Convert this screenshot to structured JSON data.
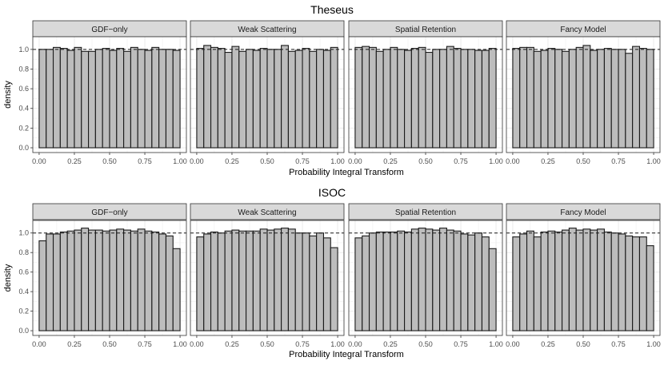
{
  "figure": {
    "panel_groups": [
      {
        "title": "Theseus",
        "xlabel": "Probability Integral Transform",
        "ylabel": "density"
      },
      {
        "title": "ISOC",
        "xlabel": "Probability Integral Transform",
        "ylabel": "density"
      }
    ],
    "facet_labels": [
      "GDF−only",
      "Weak Scattering",
      "Spatial Retention",
      "Fancy Model"
    ],
    "x_ticks": [
      "0.00",
      "0.25",
      "0.50",
      "0.75",
      "1.00"
    ],
    "y_ticks": [
      "0.0",
      "0.2",
      "0.4",
      "0.6",
      "0.8",
      "1.0"
    ]
  },
  "colors": {
    "bar_fill": "#bdbdbd",
    "bar_stroke": "#1a1a1a",
    "strip_fill": "#d9d9d9",
    "grid": "#ebebeb",
    "reference_line": "#1a1a1a"
  },
  "chart_data": [
    {
      "type": "bar",
      "title": "Theseus",
      "xlabel": "Probability Integral Transform",
      "ylabel": "density",
      "xlim": [
        0,
        1
      ],
      "ylim": [
        0,
        1.08
      ],
      "reference_line": 1.0,
      "bins": 20,
      "series": [
        {
          "name": "GDF−only",
          "values": [
            1.0,
            1.0,
            1.02,
            1.01,
            0.99,
            1.02,
            0.98,
            0.98,
            1.0,
            1.01,
            0.99,
            1.01,
            0.98,
            1.02,
            1.0,
            0.99,
            1.02,
            1.0,
            1.0,
            0.99
          ]
        },
        {
          "name": "Weak Scattering",
          "values": [
            1.01,
            1.04,
            1.02,
            1.01,
            0.97,
            1.03,
            0.98,
            1.0,
            0.99,
            1.01,
            1.0,
            1.0,
            1.04,
            0.98,
            0.99,
            1.01,
            0.98,
            1.0,
            0.99,
            1.02
          ]
        },
        {
          "name": "Spatial Retention",
          "values": [
            1.02,
            1.03,
            1.02,
            0.98,
            1.0,
            1.02,
            1.0,
            0.99,
            1.01,
            1.02,
            0.97,
            1.0,
            1.0,
            1.03,
            1.01,
            1.0,
            1.0,
            0.99,
            0.99,
            1.01
          ]
        },
        {
          "name": "Fancy Model",
          "values": [
            1.01,
            1.02,
            1.02,
            0.98,
            0.99,
            1.01,
            1.0,
            0.98,
            1.0,
            1.02,
            1.04,
            0.99,
            1.0,
            1.01,
            1.0,
            1.0,
            0.96,
            1.03,
            1.01,
            1.0
          ]
        }
      ]
    },
    {
      "type": "bar",
      "title": "ISOC",
      "xlabel": "Probability Integral Transform",
      "ylabel": "density",
      "xlim": [
        0,
        1
      ],
      "ylim": [
        0,
        1.08
      ],
      "reference_line": 1.0,
      "bins": 20,
      "series": [
        {
          "name": "GDF−only",
          "values": [
            0.92,
            0.99,
            0.99,
            1.01,
            1.02,
            1.03,
            1.05,
            1.03,
            1.03,
            1.02,
            1.03,
            1.04,
            1.03,
            1.02,
            1.04,
            1.02,
            1.01,
            0.99,
            0.97,
            0.84
          ]
        },
        {
          "name": "Weak Scattering",
          "values": [
            0.96,
            0.99,
            1.01,
            1.0,
            1.02,
            1.03,
            1.02,
            1.02,
            1.02,
            1.04,
            1.03,
            1.04,
            1.05,
            1.04,
            1.0,
            1.0,
            0.97,
            1.0,
            0.95,
            0.85
          ]
        },
        {
          "name": "Spatial Retention",
          "values": [
            0.95,
            0.97,
            1.0,
            1.01,
            1.01,
            1.01,
            1.02,
            1.01,
            1.04,
            1.05,
            1.04,
            1.03,
            1.05,
            1.03,
            1.02,
            0.99,
            0.98,
            1.0,
            0.96,
            0.84
          ]
        },
        {
          "name": "Fancy Model",
          "values": [
            0.96,
            0.99,
            1.02,
            0.96,
            1.01,
            1.02,
            1.01,
            1.03,
            1.05,
            1.03,
            1.04,
            1.03,
            1.04,
            1.01,
            1.0,
            0.99,
            0.97,
            0.96,
            0.96,
            0.87
          ]
        }
      ]
    }
  ]
}
